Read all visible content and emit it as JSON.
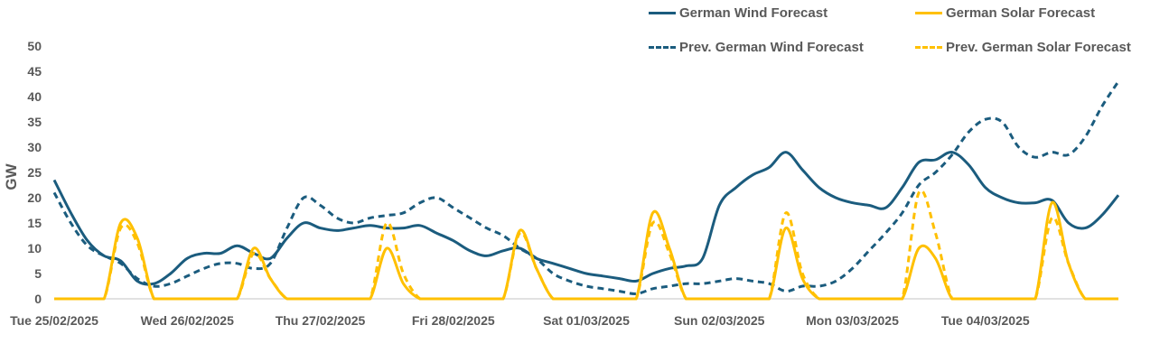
{
  "chart_data": {
    "type": "line",
    "title": "",
    "xlabel": "",
    "ylabel": "GW",
    "ylim": [
      0,
      50
    ],
    "yticks": [
      0,
      5,
      10,
      15,
      20,
      25,
      30,
      35,
      40,
      45,
      50
    ],
    "grid": false,
    "legend_position": "top-right",
    "x_unit": "hours from Tue 25/02/2025 00:00",
    "x_range_hours": [
      0,
      192
    ],
    "xtick_labels": [
      "Tue 25/02/2025",
      "Wed 26/02/2025",
      "Thu 27/02/2025",
      "Fri 28/02/2025",
      "Sat 01/03/2025",
      "Sun 02/03/2025",
      "Mon 03/03/2025",
      "Tue 04/03/2025"
    ],
    "x": [
      0,
      3,
      6,
      9,
      12,
      15,
      18,
      21,
      24,
      27,
      30,
      33,
      36,
      39,
      42,
      45,
      48,
      51,
      54,
      57,
      60,
      63,
      66,
      69,
      72,
      75,
      78,
      81,
      84,
      87,
      90,
      93,
      96,
      99,
      102,
      105,
      108,
      111,
      114,
      117,
      120,
      123,
      126,
      129,
      132,
      135,
      138,
      141,
      144,
      147,
      150,
      153,
      156,
      159,
      162,
      165,
      168,
      171,
      174,
      177,
      180,
      183,
      186,
      189,
      192
    ],
    "series": [
      {
        "name": "German Wind Forecast",
        "color": "#1B5C7E",
        "dash": false,
        "values": [
          23.5,
          17,
          11.5,
          8.5,
          7.5,
          3.5,
          3,
          5,
          8,
          9,
          9,
          10.5,
          9,
          8,
          12,
          15,
          14,
          13.5,
          14,
          14.5,
          14,
          14,
          14.5,
          13,
          11.5,
          9.5,
          8.5,
          9.5,
          10,
          8,
          7,
          6,
          5,
          4.5,
          4,
          3.5,
          5,
          6,
          6.5,
          8,
          18.5,
          22,
          24.5,
          26,
          29,
          25.5,
          22,
          20,
          19,
          18.5,
          18,
          22,
          27,
          27.5,
          29,
          26.5,
          22,
          20,
          19,
          19,
          19.5,
          15,
          14,
          16.5,
          20.5
        ]
      },
      {
        "name": "German Solar Forecast",
        "color": "#FFC000",
        "dash": false,
        "values": [
          0,
          0,
          0,
          0,
          15,
          12,
          0,
          0,
          0,
          0,
          0,
          0,
          10,
          4,
          0,
          0,
          0,
          0,
          0,
          0,
          10,
          3,
          0,
          0,
          0,
          0,
          0,
          0,
          13.5,
          6,
          0,
          0,
          0,
          0,
          0,
          0,
          17,
          10,
          0,
          0,
          0,
          0,
          0,
          0,
          14,
          4,
          0,
          0,
          0,
          0,
          0,
          0,
          10,
          8,
          0,
          0,
          0,
          0,
          0,
          0,
          19,
          7,
          0,
          0,
          0
        ]
      },
      {
        "name": "Prev. German Wind Forecast",
        "color": "#1B5C7E",
        "dash": true,
        "values": [
          21,
          15,
          10.5,
          8.5,
          7,
          4,
          2.5,
          3,
          4.5,
          6,
          7,
          7,
          6,
          7,
          14,
          20,
          18.5,
          16,
          15,
          16,
          16.5,
          17,
          19,
          20,
          18,
          16,
          14,
          12.5,
          10,
          8,
          5,
          3.5,
          2.5,
          2,
          1.5,
          1,
          2,
          2.5,
          3,
          3,
          3.5,
          4,
          3.5,
          3,
          1.5,
          2.5,
          2.5,
          3.5,
          6,
          9.5,
          13,
          17,
          22.5,
          25,
          28.5,
          33,
          35.5,
          35,
          30,
          28,
          29,
          28.5,
          32,
          38,
          43
        ]
      },
      {
        "name": "Prev. German Solar Forecast",
        "color": "#FFC000",
        "dash": true,
        "values": [
          0,
          0,
          0,
          0,
          14,
          11,
          0,
          0,
          0,
          0,
          0,
          0,
          9,
          4,
          0,
          0,
          0,
          0,
          0,
          0,
          15,
          5,
          0,
          0,
          0,
          0,
          0,
          0,
          13,
          6,
          0,
          0,
          0,
          0,
          0,
          0,
          15,
          9,
          0,
          0,
          0,
          0,
          0,
          0,
          17,
          5,
          0,
          0,
          0,
          0,
          0,
          0,
          21,
          13,
          0,
          0,
          0,
          0,
          0,
          0,
          16,
          7,
          0,
          0,
          0
        ]
      }
    ],
    "solar_peaks": [
      {
        "day": "Tue 25/02/2025",
        "hour": 13,
        "solar": 17,
        "prev_solar": 16
      },
      {
        "day": "Wed 26/02/2025",
        "hour": 37,
        "solar": 10.5,
        "prev_solar": 10
      },
      {
        "day": "Thu 27/02/2025",
        "hour": 61,
        "solar": 11.5,
        "prev_solar": 16
      },
      {
        "day": "Fri 28/02/2025",
        "hour": 85,
        "solar": 16,
        "prev_solar": 14
      },
      {
        "day": "Sat 01/03/2025",
        "hour": 109,
        "solar": 18.5,
        "prev_solar": 15.5
      },
      {
        "day": "Sun 02/03/2025",
        "hour": 133,
        "solar": 14.5,
        "prev_solar": 17
      },
      {
        "day": "Mon 03/03/2025",
        "hour": 157,
        "solar": 13,
        "prev_solar": 22.5
      },
      {
        "day": "Tue 04/03/2025",
        "hour": 181,
        "solar": 19.5,
        "prev_solar": 16.5
      }
    ]
  },
  "legend": {
    "items": [
      {
        "label": "German Wind Forecast",
        "color": "#1B5C7E",
        "dash": false
      },
      {
        "label": "German Solar Forecast",
        "color": "#FFC000",
        "dash": false
      },
      {
        "label": "Prev. German Wind Forecast",
        "color": "#1B5C7E",
        "dash": true
      },
      {
        "label": "Prev. German Solar Forecast",
        "color": "#FFC000",
        "dash": true
      }
    ]
  },
  "colors": {
    "wind": "#1B5C7E",
    "solar": "#FFC000",
    "axis": "#D9D9D9",
    "text": "#595959"
  }
}
